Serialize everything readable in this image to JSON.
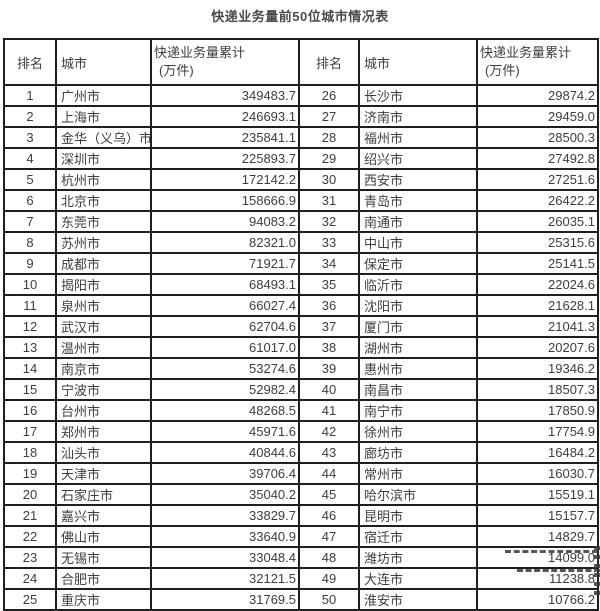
{
  "title": "快递业务量前50位城市情况表",
  "colors": {
    "text": "#3d3d3d",
    "border": "#1f1f1f",
    "title": "#4a4a4a"
  },
  "table": {
    "headers": {
      "rank": "排名",
      "city": "城市",
      "volume_line1": "快递业务量累计",
      "volume_line2": "(万件)"
    },
    "ranks_1_25": [
      {
        "rank": "1",
        "city": "广州市",
        "volume": "349483.7"
      },
      {
        "rank": "2",
        "city": "上海市",
        "volume": "246693.1"
      },
      {
        "rank": "3",
        "city": "金华（义乌）市",
        "volume": "235841.1"
      },
      {
        "rank": "4",
        "city": "深圳市",
        "volume": "225893.7"
      },
      {
        "rank": "5",
        "city": "杭州市",
        "volume": "172142.2"
      },
      {
        "rank": "6",
        "city": "北京市",
        "volume": "158666.9"
      },
      {
        "rank": "7",
        "city": "东莞市",
        "volume": "94083.2"
      },
      {
        "rank": "8",
        "city": "苏州市",
        "volume": "82321.0"
      },
      {
        "rank": "9",
        "city": "成都市",
        "volume": "71921.7"
      },
      {
        "rank": "10",
        "city": "揭阳市",
        "volume": "68493.1"
      },
      {
        "rank": "11",
        "city": "泉州市",
        "volume": "66027.4"
      },
      {
        "rank": "12",
        "city": "武汉市",
        "volume": "62704.6"
      },
      {
        "rank": "13",
        "city": "温州市",
        "volume": "61017.0"
      },
      {
        "rank": "14",
        "city": "南京市",
        "volume": "53274.6"
      },
      {
        "rank": "15",
        "city": "宁波市",
        "volume": "52982.4"
      },
      {
        "rank": "16",
        "city": "台州市",
        "volume": "48268.5"
      },
      {
        "rank": "17",
        "city": "郑州市",
        "volume": "45971.6"
      },
      {
        "rank": "18",
        "city": "汕头市",
        "volume": "40844.6"
      },
      {
        "rank": "19",
        "city": "天津市",
        "volume": "39706.4"
      },
      {
        "rank": "20",
        "city": "石家庄市",
        "volume": "35040.2"
      },
      {
        "rank": "21",
        "city": "嘉兴市",
        "volume": "33829.7"
      },
      {
        "rank": "22",
        "city": "佛山市",
        "volume": "33640.9"
      },
      {
        "rank": "23",
        "city": "无锡市",
        "volume": "33048.4"
      },
      {
        "rank": "24",
        "city": "合肥市",
        "volume": "32121.5"
      },
      {
        "rank": "25",
        "city": "重庆市",
        "volume": "31769.5"
      }
    ],
    "ranks_26_50": [
      {
        "rank": "26",
        "city": "长沙市",
        "volume": "29874.2"
      },
      {
        "rank": "27",
        "city": "济南市",
        "volume": "29459.0"
      },
      {
        "rank": "28",
        "city": "福州市",
        "volume": "28500.3"
      },
      {
        "rank": "29",
        "city": "绍兴市",
        "volume": "27492.8"
      },
      {
        "rank": "30",
        "city": "西安市",
        "volume": "27251.6"
      },
      {
        "rank": "31",
        "city": "青岛市",
        "volume": "26422.2"
      },
      {
        "rank": "32",
        "city": "南通市",
        "volume": "26035.1"
      },
      {
        "rank": "33",
        "city": "中山市",
        "volume": "25315.6"
      },
      {
        "rank": "34",
        "city": "保定市",
        "volume": "25141.5"
      },
      {
        "rank": "35",
        "city": "临沂市",
        "volume": "22024.6"
      },
      {
        "rank": "36",
        "city": "沈阳市",
        "volume": "21628.1"
      },
      {
        "rank": "37",
        "city": "厦门市",
        "volume": "21041.3"
      },
      {
        "rank": "38",
        "city": "湖州市",
        "volume": "20207.6"
      },
      {
        "rank": "39",
        "city": "惠州市",
        "volume": "19346.2"
      },
      {
        "rank": "40",
        "city": "南昌市",
        "volume": "18507.3"
      },
      {
        "rank": "41",
        "city": "南宁市",
        "volume": "17850.9"
      },
      {
        "rank": "42",
        "city": "徐州市",
        "volume": "17754.9"
      },
      {
        "rank": "43",
        "city": "廊坊市",
        "volume": "16484.2"
      },
      {
        "rank": "44",
        "city": "常州市",
        "volume": "16030.7"
      },
      {
        "rank": "45",
        "city": "哈尔滨市",
        "volume": "15519.1"
      },
      {
        "rank": "46",
        "city": "昆明市",
        "volume": "15157.7"
      },
      {
        "rank": "47",
        "city": "宿迁市",
        "volume": "14829.7"
      },
      {
        "rank": "48",
        "city": "潍坊市",
        "volume": "14099.0"
      },
      {
        "rank": "49",
        "city": "大连市",
        "volume": "11238.8"
      },
      {
        "rank": "50",
        "city": "淮安市",
        "volume": "10766.2"
      }
    ]
  }
}
